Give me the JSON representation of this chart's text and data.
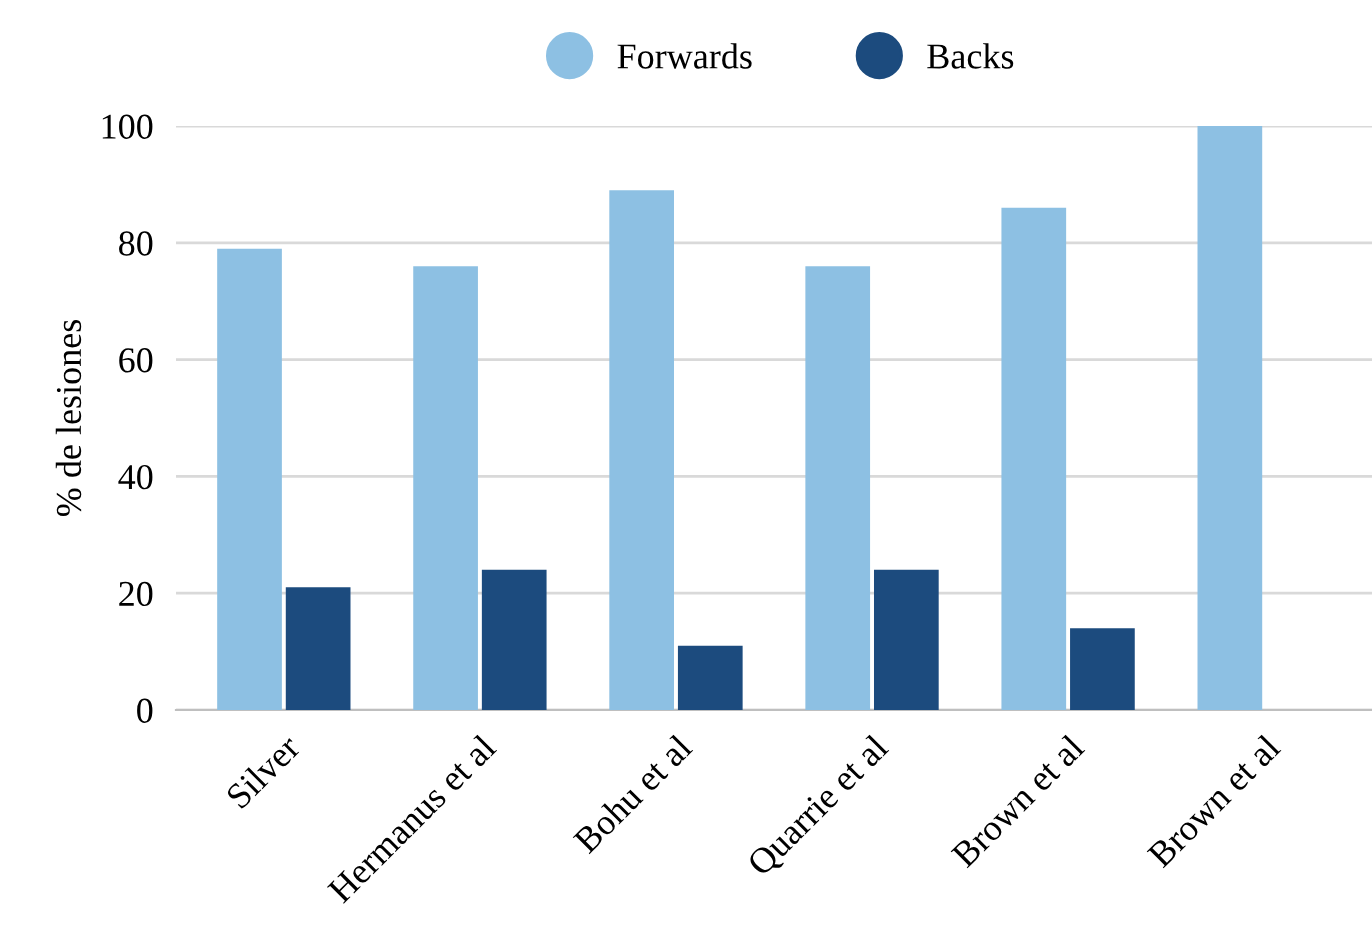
{
  "chart_data": {
    "type": "bar",
    "ylabel": "% de lesiones",
    "categories": [
      "Silver",
      "Hermanus et al",
      "Bohu et al",
      "Quarrie et al",
      "Brown et al",
      "Brown et al"
    ],
    "series": [
      {
        "name": "Forwards",
        "color": "#8dc0e3",
        "values": [
          79,
          76,
          89,
          76,
          86,
          100
        ]
      },
      {
        "name": "Backs",
        "color": "#1c4b7e",
        "values": [
          21,
          24,
          11,
          24,
          14,
          0
        ]
      }
    ],
    "ylim": [
      0,
      100
    ],
    "yticks": [
      0,
      20,
      40,
      60,
      80,
      100
    ],
    "grid": "y",
    "legend": "top"
  }
}
